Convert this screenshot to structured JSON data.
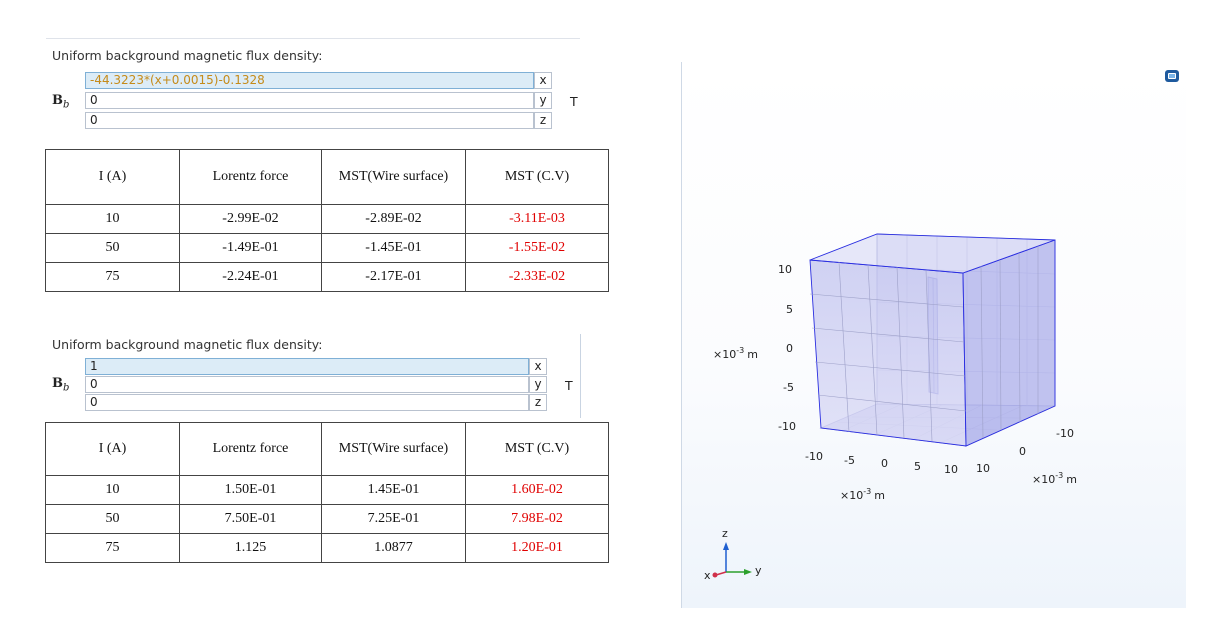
{
  "panel1": {
    "title": "Uniform background magnetic flux density:",
    "b_symbol": "B",
    "b_subscript": "b",
    "x_value": "-44.3223*(x+0.0015)-0.1328",
    "y_value": "0",
    "z_value": "0",
    "x_label": "x",
    "y_label": "y",
    "z_label": "z",
    "unit": "T"
  },
  "table1": {
    "headers": [
      "I (A)",
      "Lorentz force",
      "MST(Wire surface)",
      "MST (C.V)"
    ],
    "rows": [
      [
        "10",
        "-2.99E-02",
        "-2.89E-02",
        "-3.11E-03"
      ],
      [
        "50",
        "-1.49E-01",
        "-1.45E-01",
        "-1.55E-02"
      ],
      [
        "75",
        "-2.24E-01",
        "-2.17E-01",
        "-2.33E-02"
      ]
    ]
  },
  "panel2": {
    "title": "Uniform background magnetic flux density:",
    "b_symbol": "B",
    "b_subscript": "b",
    "x_value": "1",
    "y_value": "0",
    "z_value": "0",
    "x_label": "x",
    "y_label": "y",
    "z_label": "z",
    "unit": "T"
  },
  "table2": {
    "headers": [
      "I (A)",
      "Lorentz force",
      "MST(Wire surface)",
      "MST (C.V)"
    ],
    "rows": [
      [
        "10",
        "1.50E-01",
        "1.45E-01",
        "1.60E-02"
      ],
      [
        "50",
        "7.50E-01",
        "7.25E-01",
        "7.98E-02"
      ],
      [
        "75",
        "1.125",
        "1.0877",
        "1.20E-01"
      ]
    ]
  },
  "view3d": {
    "z_ticks": [
      "10",
      "5",
      "0",
      "-5",
      "-10"
    ],
    "x_ticks": [
      "-10",
      "-5",
      "0",
      "5",
      "10"
    ],
    "y_ticks": [
      "-10",
      "0",
      "10"
    ],
    "z_unit_base": "×10",
    "z_unit_exp": "-3",
    "z_unit_m": "m",
    "x_unit_base": "×10",
    "x_unit_exp": "-3",
    "x_unit_m": "m",
    "y_unit_base": "×10",
    "y_unit_exp": "-3",
    "y_unit_m": "m",
    "triad_z": "z",
    "triad_x": "x",
    "triad_y": "y",
    "colors": {
      "box_fill": "#c7c9f0",
      "edge": "#2a2ee0",
      "grid": "#9da0c8"
    },
    "icons": [
      "view-icon"
    ]
  }
}
